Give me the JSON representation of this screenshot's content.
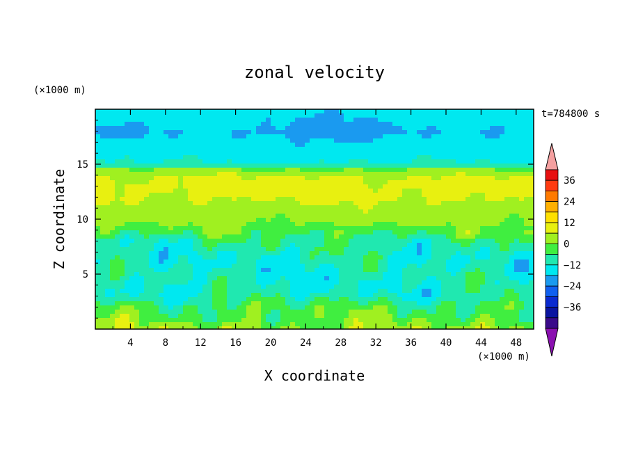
{
  "chart_data": {
    "type": "heatmap",
    "title": "zonal velocity",
    "xlabel": "X coordinate",
    "ylabel": "Z coordinate",
    "x_units": "(×1000 m)",
    "y_units": "(×1000 m)",
    "time_label": "t=784800 s",
    "xlim": [
      0,
      50
    ],
    "ylim": [
      0,
      20
    ],
    "x_ticks": [
      "4",
      "8",
      "12",
      "16",
      "20",
      "24",
      "28",
      "32",
      "36",
      "40",
      "44",
      "48"
    ],
    "y_ticks": [
      "5",
      "10",
      "15"
    ],
    "colorbar": {
      "labels": [
        "36",
        "24",
        "12",
        "0",
        "-12",
        "-24",
        "-36"
      ],
      "levels": [
        -42,
        -36,
        -30,
        -24,
        -18,
        -12,
        -6,
        0,
        6,
        12,
        18,
        24,
        30,
        36,
        42
      ],
      "colors": [
        "#8a10b0",
        "#3a0a8a",
        "#0a14a0",
        "#0a2ad0",
        "#1060f0",
        "#1a9af0",
        "#00e8f0",
        "#20e8b0",
        "#40ee40",
        "#a0f020",
        "#e8f010",
        "#ffe000",
        "#ffb000",
        "#ff7a00",
        "#ff3a10",
        "#e81010",
        "#f5a0a0"
      ]
    },
    "field_profile_z_km": [
      0,
      1,
      2,
      3,
      4,
      5,
      6,
      7,
      8,
      9,
      10,
      11,
      12,
      13,
      14,
      14.5,
      15,
      16,
      17,
      18,
      19,
      20
    ],
    "field_profile_u_ms": [
      8,
      4,
      2,
      -4,
      -6,
      -5,
      -6,
      -4,
      -2,
      4,
      8,
      10,
      13,
      14,
      12,
      6,
      -6,
      -8,
      -10,
      -12,
      -10,
      -8
    ]
  }
}
